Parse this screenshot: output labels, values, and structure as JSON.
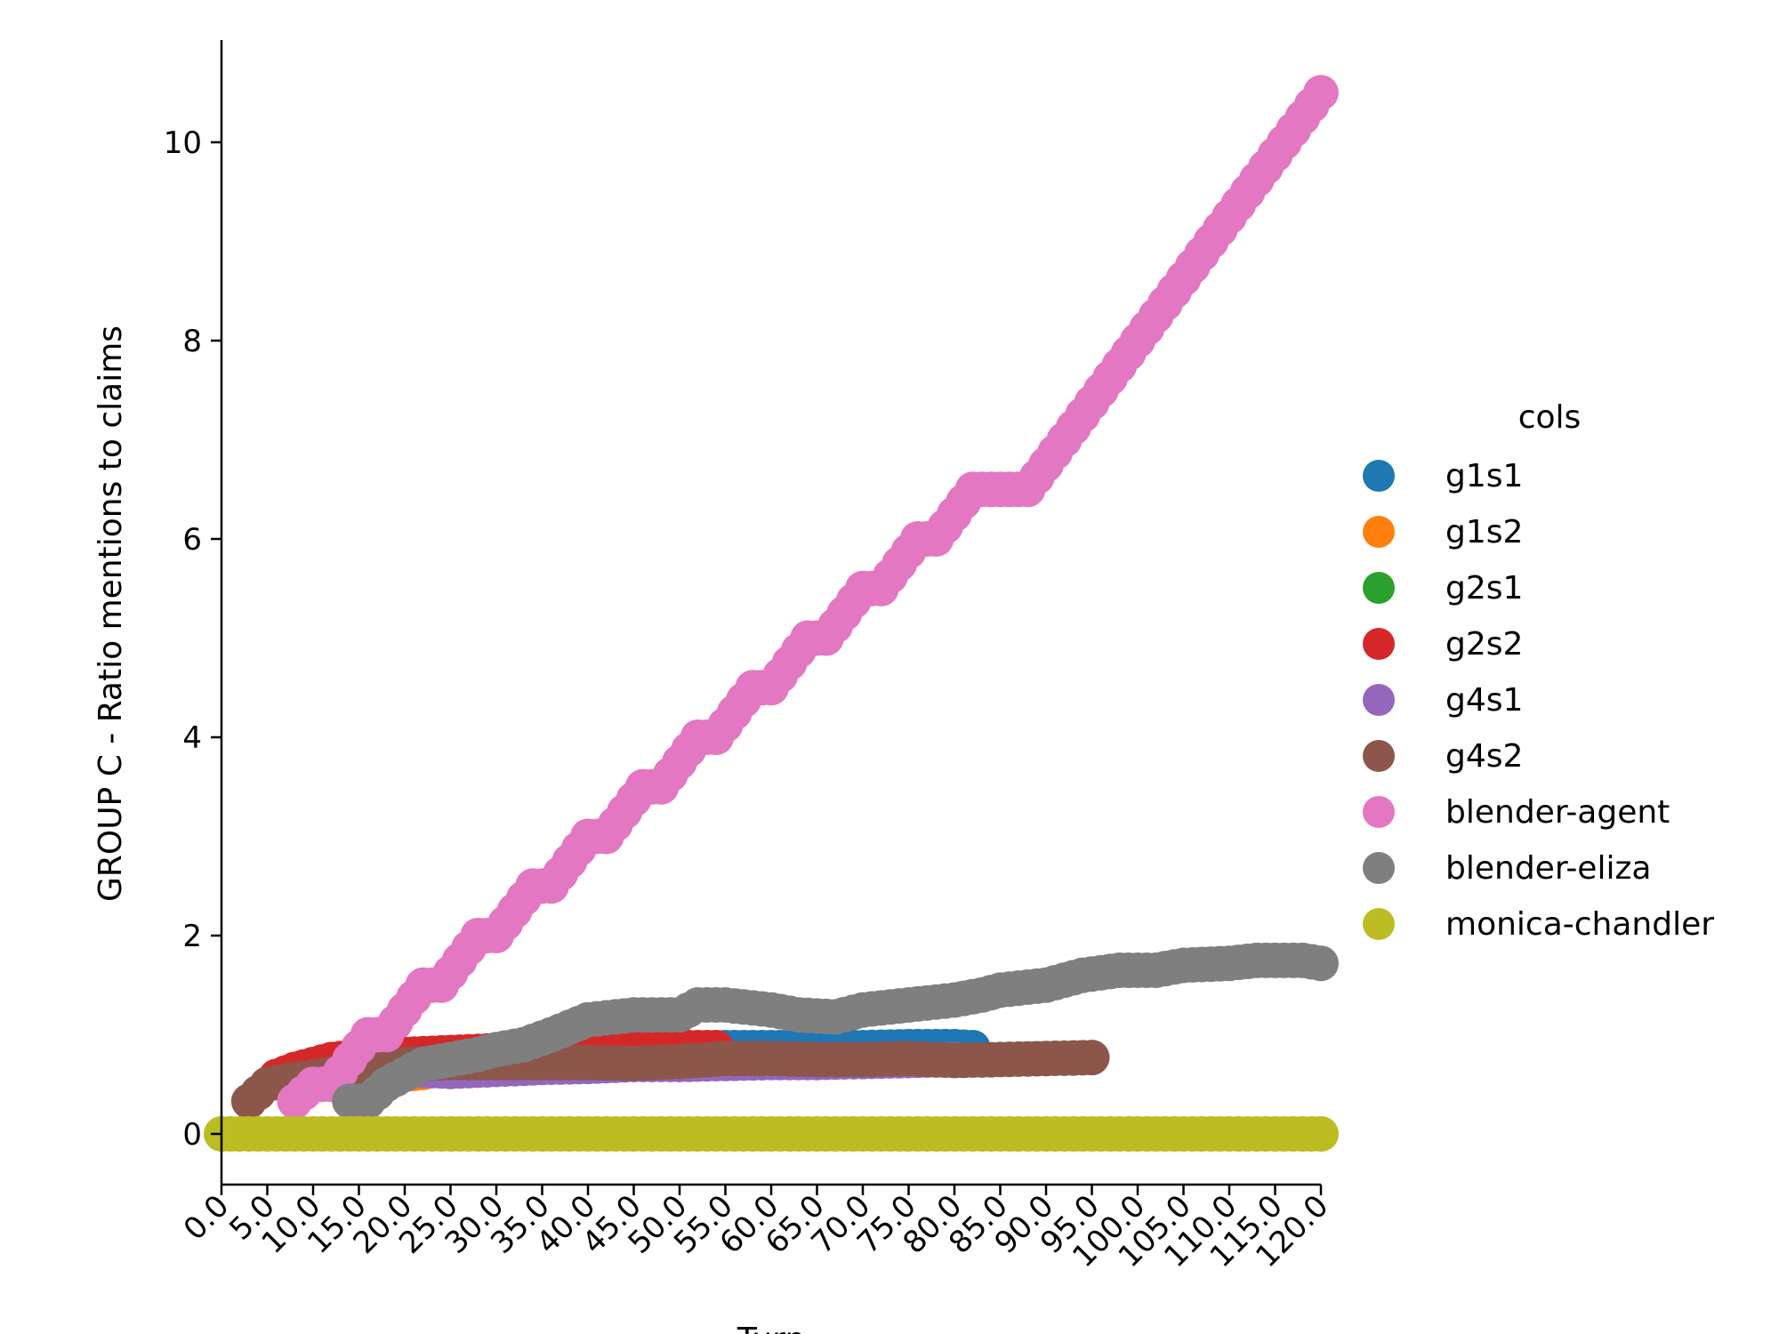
{
  "chart_data": {
    "type": "scatter",
    "title": "",
    "xlabel": "Turn",
    "ylabel": "GROUP C - Ratio mentions to claims",
    "xlim": [
      0,
      120
    ],
    "ylim": [
      -0.5,
      11
    ],
    "x_ticks": [
      "0.0",
      "5.0",
      "10.0",
      "15.0",
      "20.0",
      "25.0",
      "30.0",
      "35.0",
      "40.0",
      "45.0",
      "50.0",
      "55.0",
      "60.0",
      "65.0",
      "70.0",
      "75.0",
      "80.0",
      "85.0",
      "90.0",
      "95.0",
      "100.0",
      "105.0",
      "110.0",
      "115.0",
      "120.0"
    ],
    "y_ticks": [
      "0",
      "2",
      "4",
      "6",
      "8",
      "10"
    ],
    "grid": false,
    "legend": {
      "title": "cols",
      "position": "right"
    },
    "series": [
      {
        "name": "g1s1",
        "color": "#1f77b4",
        "points": [
          [
            20,
            0.8
          ],
          [
            25,
            0.82
          ],
          [
            30,
            0.83
          ],
          [
            35,
            0.84
          ],
          [
            40,
            0.85
          ],
          [
            45,
            0.86
          ],
          [
            50,
            0.86
          ],
          [
            55,
            0.87
          ],
          [
            60,
            0.87
          ],
          [
            65,
            0.87
          ],
          [
            70,
            0.87
          ],
          [
            75,
            0.88
          ],
          [
            80,
            0.88
          ],
          [
            82,
            0.87
          ]
        ]
      },
      {
        "name": "g1s2",
        "color": "#ff7f0e",
        "points": [
          [
            16,
            0.55
          ],
          [
            18,
            0.58
          ],
          [
            20,
            0.6
          ],
          [
            22,
            0.62
          ]
        ]
      },
      {
        "name": "g2s1",
        "color": "#2ca02c",
        "points": [
          [
            10,
            0.55
          ],
          [
            12,
            0.6
          ],
          [
            14,
            0.62
          ]
        ]
      },
      {
        "name": "g2s2",
        "color": "#d62728",
        "points": [
          [
            6,
            0.58
          ],
          [
            8,
            0.65
          ],
          [
            10,
            0.7
          ],
          [
            12,
            0.75
          ],
          [
            15,
            0.78
          ],
          [
            20,
            0.8
          ],
          [
            25,
            0.82
          ],
          [
            30,
            0.84
          ],
          [
            35,
            0.85
          ],
          [
            40,
            0.86
          ],
          [
            45,
            0.87
          ],
          [
            50,
            0.87
          ],
          [
            54,
            0.87
          ]
        ]
      },
      {
        "name": "g4s1",
        "color": "#9467bd",
        "points": [
          [
            20,
            0.65
          ],
          [
            25,
            0.63
          ],
          [
            30,
            0.65
          ],
          [
            35,
            0.67
          ],
          [
            40,
            0.68
          ],
          [
            45,
            0.7
          ],
          [
            50,
            0.7
          ],
          [
            55,
            0.71
          ],
          [
            60,
            0.72
          ],
          [
            65,
            0.72
          ],
          [
            70,
            0.73
          ],
          [
            75,
            0.74
          ],
          [
            80,
            0.75
          ]
        ]
      },
      {
        "name": "g4s2",
        "color": "#8c564b",
        "points": [
          [
            3,
            0.33
          ],
          [
            5,
            0.5
          ],
          [
            8,
            0.55
          ],
          [
            12,
            0.6
          ],
          [
            15,
            0.65
          ],
          [
            20,
            0.7
          ],
          [
            25,
            0.72
          ],
          [
            30,
            0.72
          ],
          [
            35,
            0.72
          ],
          [
            40,
            0.72
          ],
          [
            45,
            0.71
          ],
          [
            50,
            0.73
          ],
          [
            55,
            0.76
          ],
          [
            60,
            0.76
          ],
          [
            65,
            0.75
          ],
          [
            70,
            0.75
          ],
          [
            75,
            0.76
          ],
          [
            80,
            0.74
          ],
          [
            85,
            0.75
          ],
          [
            90,
            0.76
          ],
          [
            95,
            0.77
          ]
        ]
      },
      {
        "name": "blender-agent",
        "color": "#e377c2",
        "points": [
          [
            8,
            0.33
          ],
          [
            10,
            0.5
          ],
          [
            12,
            0.5
          ],
          [
            14,
            0.75
          ],
          [
            16,
            1.0
          ],
          [
            18,
            1.0
          ],
          [
            20,
            1.25
          ],
          [
            22,
            1.5
          ],
          [
            24,
            1.5
          ],
          [
            26,
            1.75
          ],
          [
            28,
            2.0
          ],
          [
            30,
            2.0
          ],
          [
            32,
            2.25
          ],
          [
            34,
            2.5
          ],
          [
            36,
            2.5
          ],
          [
            38,
            2.75
          ],
          [
            40,
            3.0
          ],
          [
            42,
            3.0
          ],
          [
            44,
            3.25
          ],
          [
            46,
            3.5
          ],
          [
            48,
            3.5
          ],
          [
            50,
            3.75
          ],
          [
            52,
            4.0
          ],
          [
            54,
            4.0
          ],
          [
            56,
            4.25
          ],
          [
            58,
            4.5
          ],
          [
            60,
            4.5
          ],
          [
            62,
            4.75
          ],
          [
            64,
            5.0
          ],
          [
            66,
            5.0
          ],
          [
            68,
            5.25
          ],
          [
            70,
            5.5
          ],
          [
            72,
            5.5
          ],
          [
            74,
            5.75
          ],
          [
            76,
            6.0
          ],
          [
            78,
            6.0
          ],
          [
            80,
            6.25
          ],
          [
            82,
            6.5
          ],
          [
            84,
            6.5
          ],
          [
            86,
            6.5
          ],
          [
            88,
            6.5
          ],
          [
            90,
            6.75
          ],
          [
            92,
            7.0
          ],
          [
            94,
            7.25
          ],
          [
            96,
            7.5
          ],
          [
            98,
            7.75
          ],
          [
            100,
            8.0
          ],
          [
            102,
            8.25
          ],
          [
            104,
            8.5
          ],
          [
            106,
            8.75
          ],
          [
            108,
            9.0
          ],
          [
            110,
            9.25
          ],
          [
            112,
            9.5
          ],
          [
            114,
            9.75
          ],
          [
            116,
            10.0
          ],
          [
            118,
            10.25
          ],
          [
            120,
            10.5
          ]
        ]
      },
      {
        "name": "blender-eliza",
        "color": "#7f7f7f",
        "points": [
          [
            14,
            0.33
          ],
          [
            16,
            0.33
          ],
          [
            18,
            0.5
          ],
          [
            20,
            0.6
          ],
          [
            22,
            0.7
          ],
          [
            25,
            0.75
          ],
          [
            28,
            0.8
          ],
          [
            30,
            0.85
          ],
          [
            33,
            0.9
          ],
          [
            36,
            1.0
          ],
          [
            40,
            1.15
          ],
          [
            45,
            1.2
          ],
          [
            50,
            1.2
          ],
          [
            52,
            1.3
          ],
          [
            55,
            1.3
          ],
          [
            60,
            1.25
          ],
          [
            63,
            1.2
          ],
          [
            67,
            1.18
          ],
          [
            70,
            1.25
          ],
          [
            75,
            1.3
          ],
          [
            80,
            1.35
          ],
          [
            83,
            1.4
          ],
          [
            85,
            1.45
          ],
          [
            90,
            1.5
          ],
          [
            94,
            1.6
          ],
          [
            98,
            1.65
          ],
          [
            102,
            1.65
          ],
          [
            105,
            1.7
          ],
          [
            110,
            1.72
          ],
          [
            113,
            1.75
          ],
          [
            118,
            1.75
          ],
          [
            120,
            1.72
          ]
        ]
      },
      {
        "name": "monica-chandler",
        "color": "#bcbd22",
        "points": [
          [
            0,
            0
          ],
          [
            120,
            0
          ]
        ]
      }
    ]
  }
}
